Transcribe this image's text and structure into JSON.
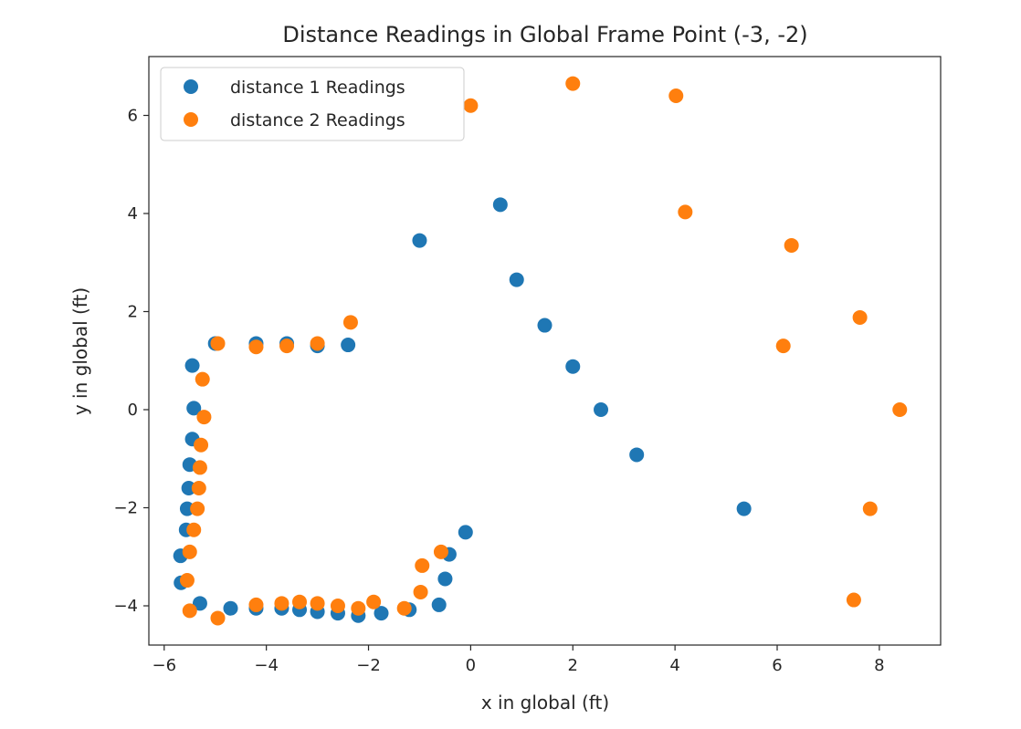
{
  "chart_data": {
    "type": "scatter",
    "title": "Distance Readings in Global Frame Point (-3, -2)",
    "xlabel": "x in global (ft)",
    "ylabel": "y in global (ft)",
    "xlim": [
      -6.3,
      9.2
    ],
    "ylim": [
      -4.8,
      7.2
    ],
    "xticks": [
      -6,
      -4,
      -2,
      0,
      2,
      4,
      6,
      8
    ],
    "yticks": [
      -4,
      -2,
      0,
      2,
      4,
      6
    ],
    "xtick_labels": [
      "−6",
      "−4",
      "−2",
      "0",
      "2",
      "4",
      "6",
      "8"
    ],
    "ytick_labels": [
      "−4",
      "−2",
      "0",
      "2",
      "4",
      "6"
    ],
    "grid": false,
    "legend_position": "top-left",
    "series": [
      {
        "name": "distance 1 Readings",
        "color": "#1f77b4",
        "points": [
          [
            -5.45,
            0.9
          ],
          [
            -5.42,
            0.03
          ],
          [
            -5.45,
            -0.6
          ],
          [
            -5.5,
            -1.12
          ],
          [
            -5.52,
            -1.6
          ],
          [
            -5.55,
            -2.02
          ],
          [
            -5.57,
            -2.45
          ],
          [
            -5.68,
            -2.98
          ],
          [
            -5.67,
            -3.53
          ],
          [
            -5.3,
            -3.95
          ],
          [
            -4.7,
            -4.05
          ],
          [
            -4.2,
            -4.05
          ],
          [
            -3.7,
            -4.05
          ],
          [
            -3.35,
            -4.08
          ],
          [
            -3.0,
            -4.12
          ],
          [
            -2.6,
            -4.15
          ],
          [
            -2.2,
            -4.2
          ],
          [
            -1.75,
            -4.15
          ],
          [
            -1.2,
            -4.08
          ],
          [
            -0.62,
            -3.98
          ],
          [
            -0.5,
            -3.45
          ],
          [
            -0.42,
            -2.95
          ],
          [
            -0.1,
            -2.5
          ],
          [
            -5.0,
            1.35
          ],
          [
            -4.2,
            1.35
          ],
          [
            -3.6,
            1.35
          ],
          [
            -3.0,
            1.3
          ],
          [
            -2.4,
            1.32
          ],
          [
            -1.0,
            3.45
          ],
          [
            0.58,
            4.18
          ],
          [
            0.9,
            2.65
          ],
          [
            1.45,
            1.72
          ],
          [
            2.0,
            0.88
          ],
          [
            2.55,
            0.0
          ],
          [
            3.25,
            -0.92
          ],
          [
            5.35,
            -2.02
          ]
        ]
      },
      {
        "name": "distance 2 Readings",
        "color": "#ff7f0e",
        "points": [
          [
            -4.95,
            1.35
          ],
          [
            -4.2,
            1.28
          ],
          [
            -3.6,
            1.3
          ],
          [
            -3.0,
            1.35
          ],
          [
            -2.35,
            1.78
          ],
          [
            -5.25,
            0.62
          ],
          [
            -5.22,
            -0.15
          ],
          [
            -5.28,
            -0.72
          ],
          [
            -5.3,
            -1.18
          ],
          [
            -5.32,
            -1.6
          ],
          [
            -5.35,
            -2.02
          ],
          [
            -5.42,
            -2.45
          ],
          [
            -5.5,
            -2.9
          ],
          [
            -5.55,
            -3.48
          ],
          [
            -5.5,
            -4.1
          ],
          [
            -4.95,
            -4.25
          ],
          [
            -4.2,
            -3.98
          ],
          [
            -3.7,
            -3.95
          ],
          [
            -3.35,
            -3.92
          ],
          [
            -3.0,
            -3.95
          ],
          [
            -2.6,
            -4.0
          ],
          [
            -2.2,
            -4.05
          ],
          [
            -1.9,
            -3.92
          ],
          [
            -1.3,
            -4.05
          ],
          [
            -0.98,
            -3.72
          ],
          [
            -0.95,
            -3.18
          ],
          [
            -0.58,
            -2.9
          ],
          [
            0.0,
            6.2
          ],
          [
            2.0,
            6.65
          ],
          [
            4.02,
            6.4
          ],
          [
            4.2,
            4.03
          ],
          [
            6.28,
            3.35
          ],
          [
            6.12,
            1.3
          ],
          [
            7.62,
            1.88
          ],
          [
            8.4,
            0.0
          ],
          [
            7.82,
            -2.02
          ],
          [
            7.5,
            -3.88
          ]
        ]
      }
    ]
  }
}
